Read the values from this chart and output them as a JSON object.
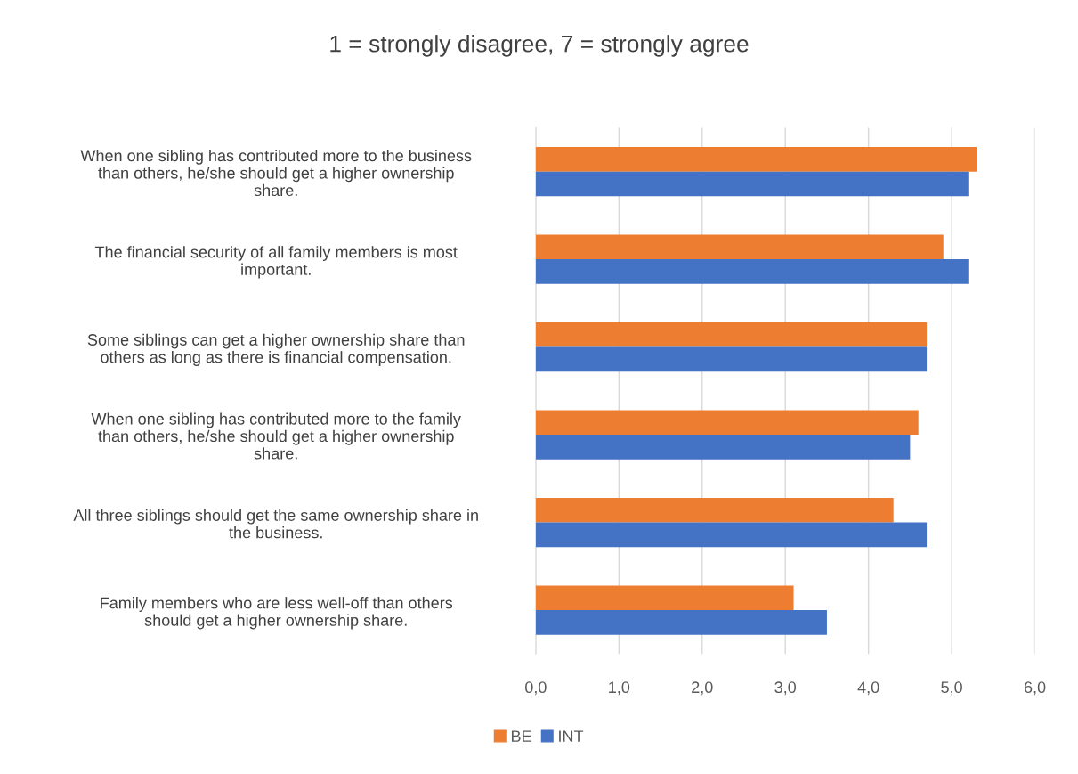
{
  "chart_data": {
    "type": "bar",
    "orientation": "horizontal",
    "title": "1 = strongly disagree, 7 = strongly agree",
    "categories": [
      "When one sibling has contributed more to the business\nthan others, he/she should get a higher ownership\nshare.",
      "The financial security of all family members is most\nimportant.",
      "Some siblings can get a higher ownership share than\nothers as long as there is financial compensation.",
      "When one sibling has contributed more to the family\nthan others, he/she should get a higher ownership\nshare.",
      "All three siblings should get the same ownership share in\nthe business.",
      "Family members who are less well-off than others\nshould get a higher ownership share."
    ],
    "series": [
      {
        "name": "BE",
        "color": "#ed7d31",
        "values": [
          5.3,
          4.9,
          4.7,
          4.6,
          4.3,
          3.1
        ]
      },
      {
        "name": "INT",
        "color": "#4472c4",
        "values": [
          5.2,
          5.2,
          4.7,
          4.5,
          4.7,
          3.5
        ]
      }
    ],
    "xlim": [
      0,
      6
    ],
    "xticks": [
      {
        "value": 0,
        "label": "0,0"
      },
      {
        "value": 1,
        "label": "1,0"
      },
      {
        "value": 2,
        "label": "2,0"
      },
      {
        "value": 3,
        "label": "3,0"
      },
      {
        "value": 4,
        "label": "4,0"
      },
      {
        "value": 5,
        "label": "5,0"
      },
      {
        "value": 6,
        "label": "6,0"
      }
    ],
    "grid": "x",
    "legend": "bottom"
  }
}
